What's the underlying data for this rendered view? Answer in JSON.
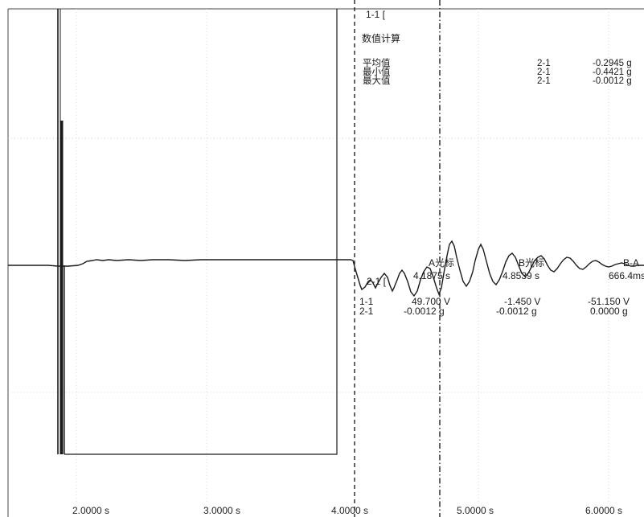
{
  "trace_label": "1-1 [",
  "stats": {
    "title": "数值计算",
    "rows": [
      {
        "label": "平均值",
        "channel": "2-1",
        "value": "-0.2945 g"
      },
      {
        "label": "最小值",
        "channel": "2-1",
        "value": "-0.4421 g"
      },
      {
        "label": "最大值",
        "channel": "2-1",
        "value": "-0.0012 g"
      }
    ]
  },
  "cursor": {
    "trace_label": "2-1 [",
    "a_label": "A光标",
    "a_time": "4.1875 s",
    "b_label": "B光标",
    "b_time": "4.8539 s",
    "diff_label": "B-A",
    "diff_time": "666.4ms",
    "rows": [
      {
        "channel": "1-1",
        "a": "49.700 V",
        "b": "-1.450 V",
        "diff": "-51.150 V"
      },
      {
        "channel": "2-1",
        "a": "-0.0012 g",
        "b": "-0.0012 g",
        "diff": "0.0000 g"
      }
    ]
  },
  "x_ticks": [
    "2.0000 s",
    "3.0000 s",
    "4.0000 s",
    "5.0000 s",
    "6.0000 s"
  ]
}
